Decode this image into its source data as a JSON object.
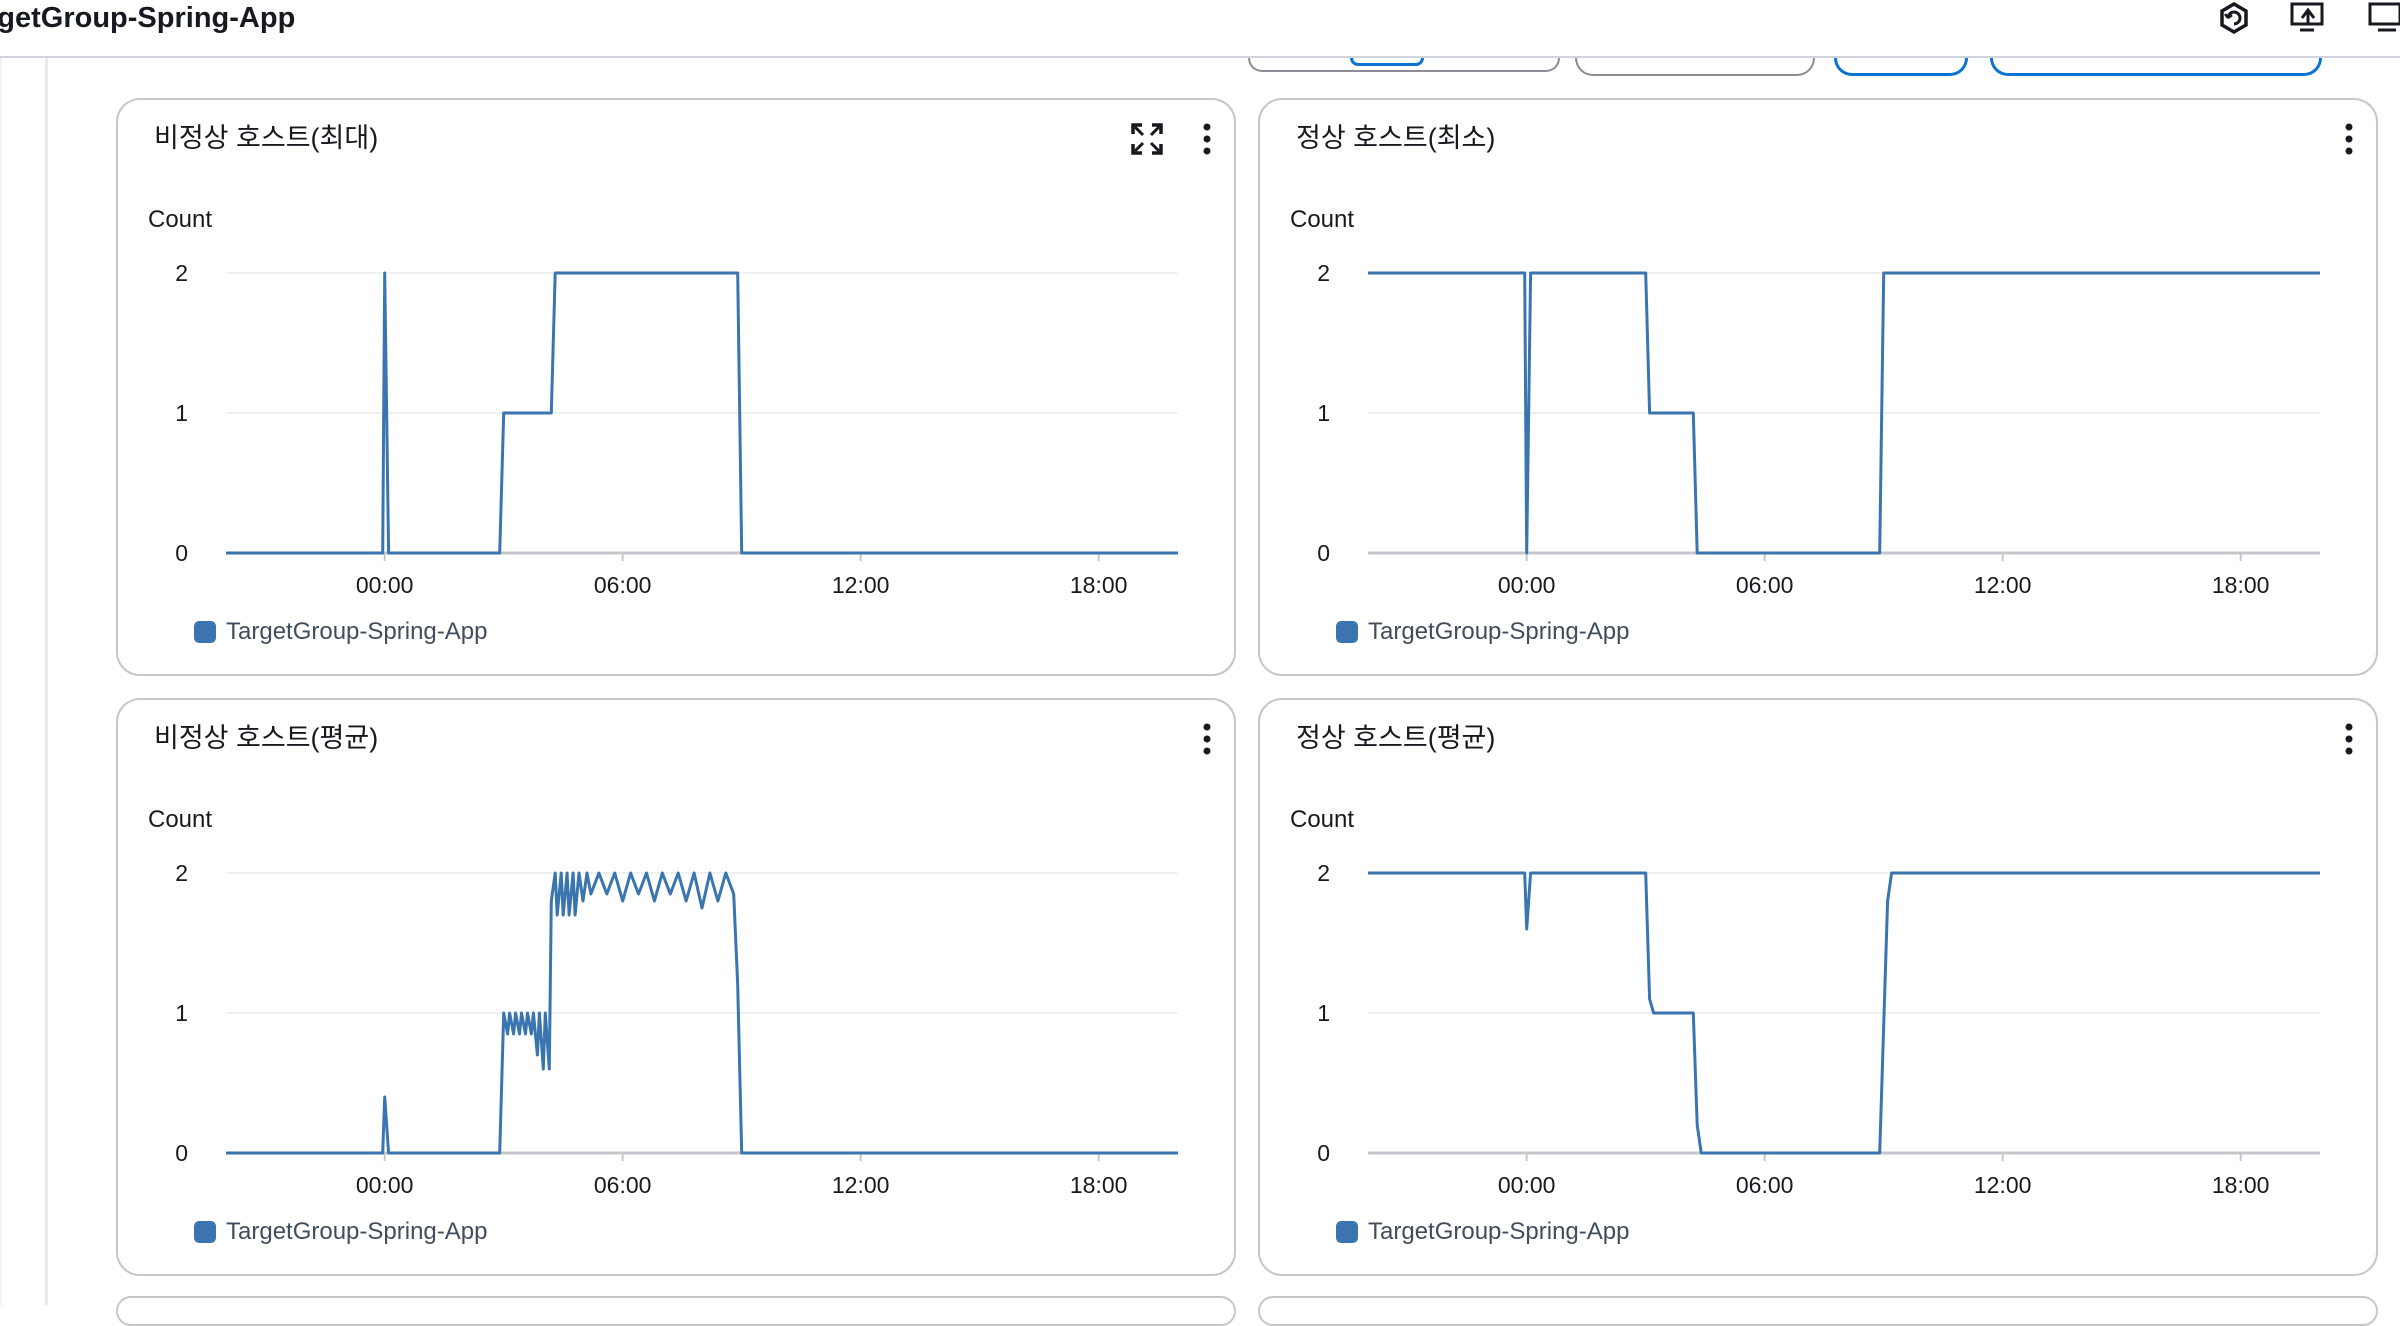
{
  "header": {
    "title": "rgetGroup-Spring-App",
    "icons": [
      "hexagon-refresh-icon",
      "share-screen-icon",
      "screen-icon"
    ]
  },
  "colors": {
    "series": "#3a75af",
    "grid": "#e9ebed",
    "axis": "#c6c6cd"
  },
  "panels": [
    {
      "title": "비정상 호스트(최대)",
      "has_expand": true
    },
    {
      "title": "정상 호스트(최소)",
      "has_expand": false
    },
    {
      "title": "비정상 호스트(평균)",
      "has_expand": false
    },
    {
      "title": "정상 호스트(평균)",
      "has_expand": false
    }
  ],
  "chart_data": [
    {
      "type": "line",
      "title": "비정상 호스트(최대)",
      "ylabel": "Count",
      "ylim": [
        0,
        2
      ],
      "yticks": [
        "0",
        "1",
        "2"
      ],
      "xticks": [
        {
          "h": 0,
          "label": "00:00"
        },
        {
          "h": 6,
          "label": "06:00"
        },
        {
          "h": 12,
          "label": "12:00"
        },
        {
          "h": 18,
          "label": "18:00"
        }
      ],
      "xlim": [
        -4,
        20
      ],
      "series": [
        {
          "name": "TargetGroup-Spring-App",
          "x": [
            -4,
            -0.05,
            0,
            0.1,
            2.9,
            3.0,
            4.2,
            4.3,
            8.9,
            9.0,
            20
          ],
          "y": [
            0,
            0,
            2,
            0,
            0,
            1,
            1,
            2,
            2,
            0,
            0
          ]
        }
      ]
    },
    {
      "type": "line",
      "title": "정상 호스트(최소)",
      "ylabel": "Count",
      "ylim": [
        0,
        2
      ],
      "yticks": [
        "0",
        "1",
        "2"
      ],
      "xticks": [
        {
          "h": 0,
          "label": "00:00"
        },
        {
          "h": 6,
          "label": "06:00"
        },
        {
          "h": 12,
          "label": "12:00"
        },
        {
          "h": 18,
          "label": "18:00"
        }
      ],
      "xlim": [
        -4,
        20
      ],
      "series": [
        {
          "name": "TargetGroup-Spring-App",
          "x": [
            -4,
            -0.05,
            0,
            0.1,
            3.0,
            3.1,
            4.2,
            4.3,
            8.9,
            9.0,
            20
          ],
          "y": [
            2,
            2,
            0,
            2,
            2,
            1,
            1,
            0,
            0,
            2,
            2
          ]
        }
      ]
    },
    {
      "type": "line",
      "title": "비정상 호스트(평균)",
      "ylabel": "Count",
      "ylim": [
        0,
        2
      ],
      "yticks": [
        "0",
        "1",
        "2"
      ],
      "xticks": [
        {
          "h": 0,
          "label": "00:00"
        },
        {
          "h": 6,
          "label": "06:00"
        },
        {
          "h": 12,
          "label": "12:00"
        },
        {
          "h": 18,
          "label": "18:00"
        }
      ],
      "xlim": [
        -4,
        20
      ],
      "series": [
        {
          "name": "TargetGroup-Spring-App",
          "x": [
            -4,
            -0.05,
            0,
            0.1,
            2.9,
            3.0,
            3.1,
            3.15,
            3.25,
            3.3,
            3.4,
            3.45,
            3.55,
            3.6,
            3.7,
            3.75,
            3.85,
            3.9,
            4.0,
            4.05,
            4.15,
            4.2,
            4.3,
            4.35,
            4.45,
            4.5,
            4.6,
            4.65,
            4.75,
            4.8,
            4.9,
            5.0,
            5.1,
            5.2,
            5.4,
            5.6,
            5.8,
            6.0,
            6.2,
            6.4,
            6.6,
            6.8,
            7.0,
            7.2,
            7.4,
            7.6,
            7.8,
            8.0,
            8.2,
            8.4,
            8.6,
            8.8,
            8.9,
            9.0,
            20
          ],
          "y": [
            0,
            0,
            0.4,
            0,
            0,
            1,
            0.85,
            1,
            0.85,
            1,
            0.85,
            1,
            0.85,
            1,
            0.85,
            1,
            0.7,
            1,
            0.6,
            1,
            0.6,
            1.8,
            2,
            1.7,
            2,
            1.7,
            2,
            1.7,
            2,
            1.7,
            2,
            1.8,
            2,
            1.85,
            2,
            1.85,
            2,
            1.8,
            2,
            1.85,
            2,
            1.8,
            2,
            1.85,
            2,
            1.8,
            2,
            1.75,
            2,
            1.8,
            2,
            1.85,
            1.2,
            0,
            0
          ]
        }
      ]
    },
    {
      "type": "line",
      "title": "정상 호스트(평균)",
      "ylabel": "Count",
      "ylim": [
        0,
        2
      ],
      "yticks": [
        "0",
        "1",
        "2"
      ],
      "xticks": [
        {
          "h": 0,
          "label": "00:00"
        },
        {
          "h": 6,
          "label": "06:00"
        },
        {
          "h": 12,
          "label": "12:00"
        },
        {
          "h": 18,
          "label": "18:00"
        }
      ],
      "xlim": [
        -4,
        20
      ],
      "series": [
        {
          "name": "TargetGroup-Spring-App",
          "x": [
            -4,
            -0.05,
            0,
            0.1,
            3.0,
            3.1,
            3.2,
            4.2,
            4.3,
            4.4,
            8.9,
            9.1,
            9.2,
            20
          ],
          "y": [
            2,
            2,
            1.6,
            2,
            2,
            1.1,
            1,
            1,
            0.2,
            0,
            0,
            1.8,
            2,
            2
          ]
        }
      ]
    }
  ]
}
